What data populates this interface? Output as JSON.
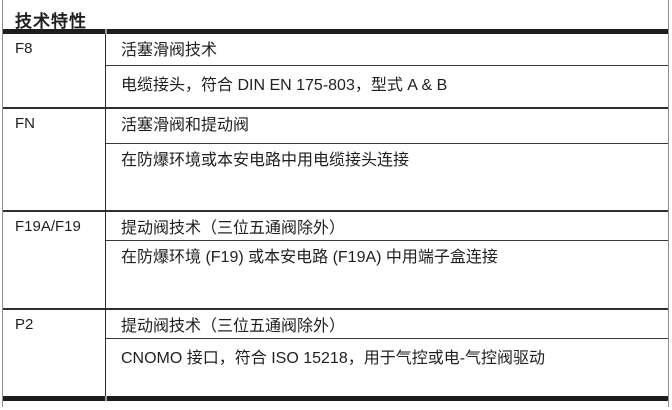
{
  "table": {
    "title": "技术特性",
    "groups": [
      {
        "code": "F8",
        "rows": [
          "活塞滑阀技术",
          "电缆接头，符合 DIN EN 175-803，型式 A & B"
        ]
      },
      {
        "code": "FN",
        "rows": [
          "活塞滑阀和提动阀",
          "在防爆环境或本安电路中用电缆接头连接"
        ]
      },
      {
        "code": "F19A/F19",
        "rows": [
          "提动阀技术（三位五通阀除外）",
          "在防爆环境 (F19) 或本安电路 (F19A) 中用端子盒连接"
        ]
      },
      {
        "code": "P2",
        "rows": [
          "提动阀技术（三位五通阀除外）",
          "CNOMO 接口，符合 ISO 15218，用于气控或电-气控阀驱动"
        ]
      }
    ]
  },
  "colors": {
    "text": "#1f1f1f",
    "thick_band": "#1d1d1d",
    "inner_line": "#3a3a3a",
    "group_line": "#2e2e2e",
    "outer_border": "#8f8f8f",
    "background": "#ffffff"
  }
}
